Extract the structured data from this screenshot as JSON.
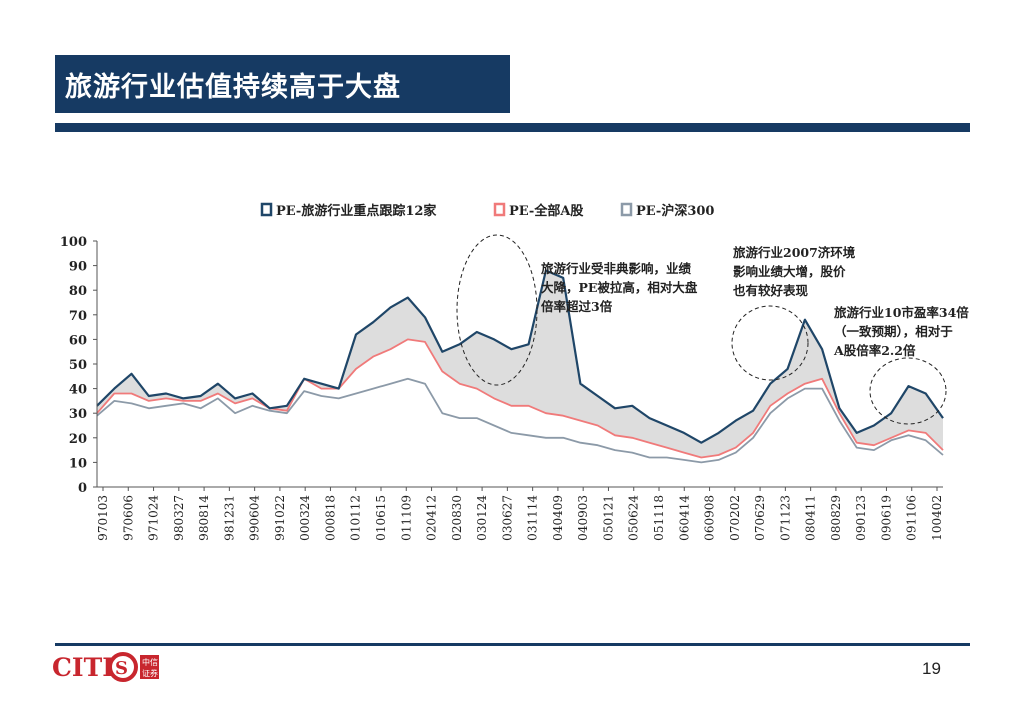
{
  "slide": {
    "title": "旅游行业估值持续高于大盘",
    "page_number": "19",
    "logo_text": "CITICS",
    "logo_sub": [
      "中信",
      "证券"
    ]
  },
  "colors": {
    "navy": "#163a63",
    "travel": "#1f4668",
    "all_a": "#f07a7a",
    "hs300": "#8c9aa8",
    "shade": "#dddddd"
  },
  "chart_data": {
    "type": "line",
    "title": "",
    "xlabel": "",
    "ylabel": "",
    "ylim": [
      0,
      100
    ],
    "y_ticks": [
      0,
      10,
      20,
      30,
      40,
      50,
      60,
      70,
      80,
      90,
      100
    ],
    "x_tick_labels": [
      "970103",
      "970606",
      "971024",
      "980327",
      "980814",
      "981231",
      "990604",
      "991022",
      "000324",
      "000818",
      "010112",
      "010615",
      "011109",
      "020412",
      "020830",
      "030124",
      "030627",
      "031114",
      "040409",
      "040903",
      "050121",
      "050624",
      "051118",
      "060414",
      "060908",
      "070202",
      "070629",
      "071123",
      "080411",
      "080829",
      "090123",
      "090619",
      "091106",
      "100402"
    ],
    "legend_position": "top",
    "grid": false,
    "shaded_area": "between PE-旅游行业重点跟踪12家 and PE-全部A股",
    "series": [
      {
        "name": "PE-旅游行业重点跟踪12家",
        "color": "#1f4668",
        "values": [
          33,
          40,
          46,
          37,
          38,
          36,
          37,
          42,
          36,
          38,
          32,
          33,
          44,
          42,
          40,
          62,
          67,
          73,
          77,
          69,
          55,
          58,
          63,
          60,
          56,
          58,
          88,
          85,
          42,
          37,
          32,
          33,
          28,
          25,
          22,
          18,
          22,
          27,
          31,
          42,
          48,
          68,
          56,
          32,
          22,
          25,
          30,
          41,
          38,
          28
        ]
      },
      {
        "name": "PE-全部A股",
        "color": "#f07a7a",
        "values": [
          30,
          38,
          38,
          35,
          36,
          35,
          35,
          38,
          34,
          36,
          32,
          31,
          44,
          40,
          40,
          48,
          53,
          56,
          60,
          59,
          47,
          42,
          40,
          36,
          33,
          33,
          30,
          29,
          27,
          25,
          21,
          20,
          18,
          16,
          14,
          12,
          13,
          16,
          22,
          33,
          38,
          42,
          44,
          30,
          18,
          17,
          20,
          23,
          22,
          15
        ]
      },
      {
        "name": "PE-沪深300",
        "color": "#8c9aa8",
        "values": [
          29,
          35,
          34,
          32,
          33,
          34,
          32,
          36,
          30,
          33,
          31,
          30,
          39,
          37,
          36,
          38,
          40,
          42,
          44,
          42,
          30,
          28,
          28,
          25,
          22,
          21,
          20,
          20,
          18,
          17,
          15,
          14,
          12,
          12,
          11,
          10,
          11,
          14,
          20,
          30,
          36,
          40,
          40,
          27,
          16,
          15,
          19,
          21,
          19,
          13
        ]
      }
    ],
    "annotations": [
      {
        "text": [
          "旅游行业受非典影响，业绩",
          "大降，PE被拉高，相对大盘",
          "倍率超过3倍"
        ]
      },
      {
        "text": [
          "旅游行业2007济环境",
          "影响业绩大增，股价",
          "也有较好表现"
        ]
      },
      {
        "text": [
          "旅游行业10市盈率34倍",
          "（一致预期），相对于",
          "A股倍率2.2倍"
        ]
      }
    ]
  }
}
